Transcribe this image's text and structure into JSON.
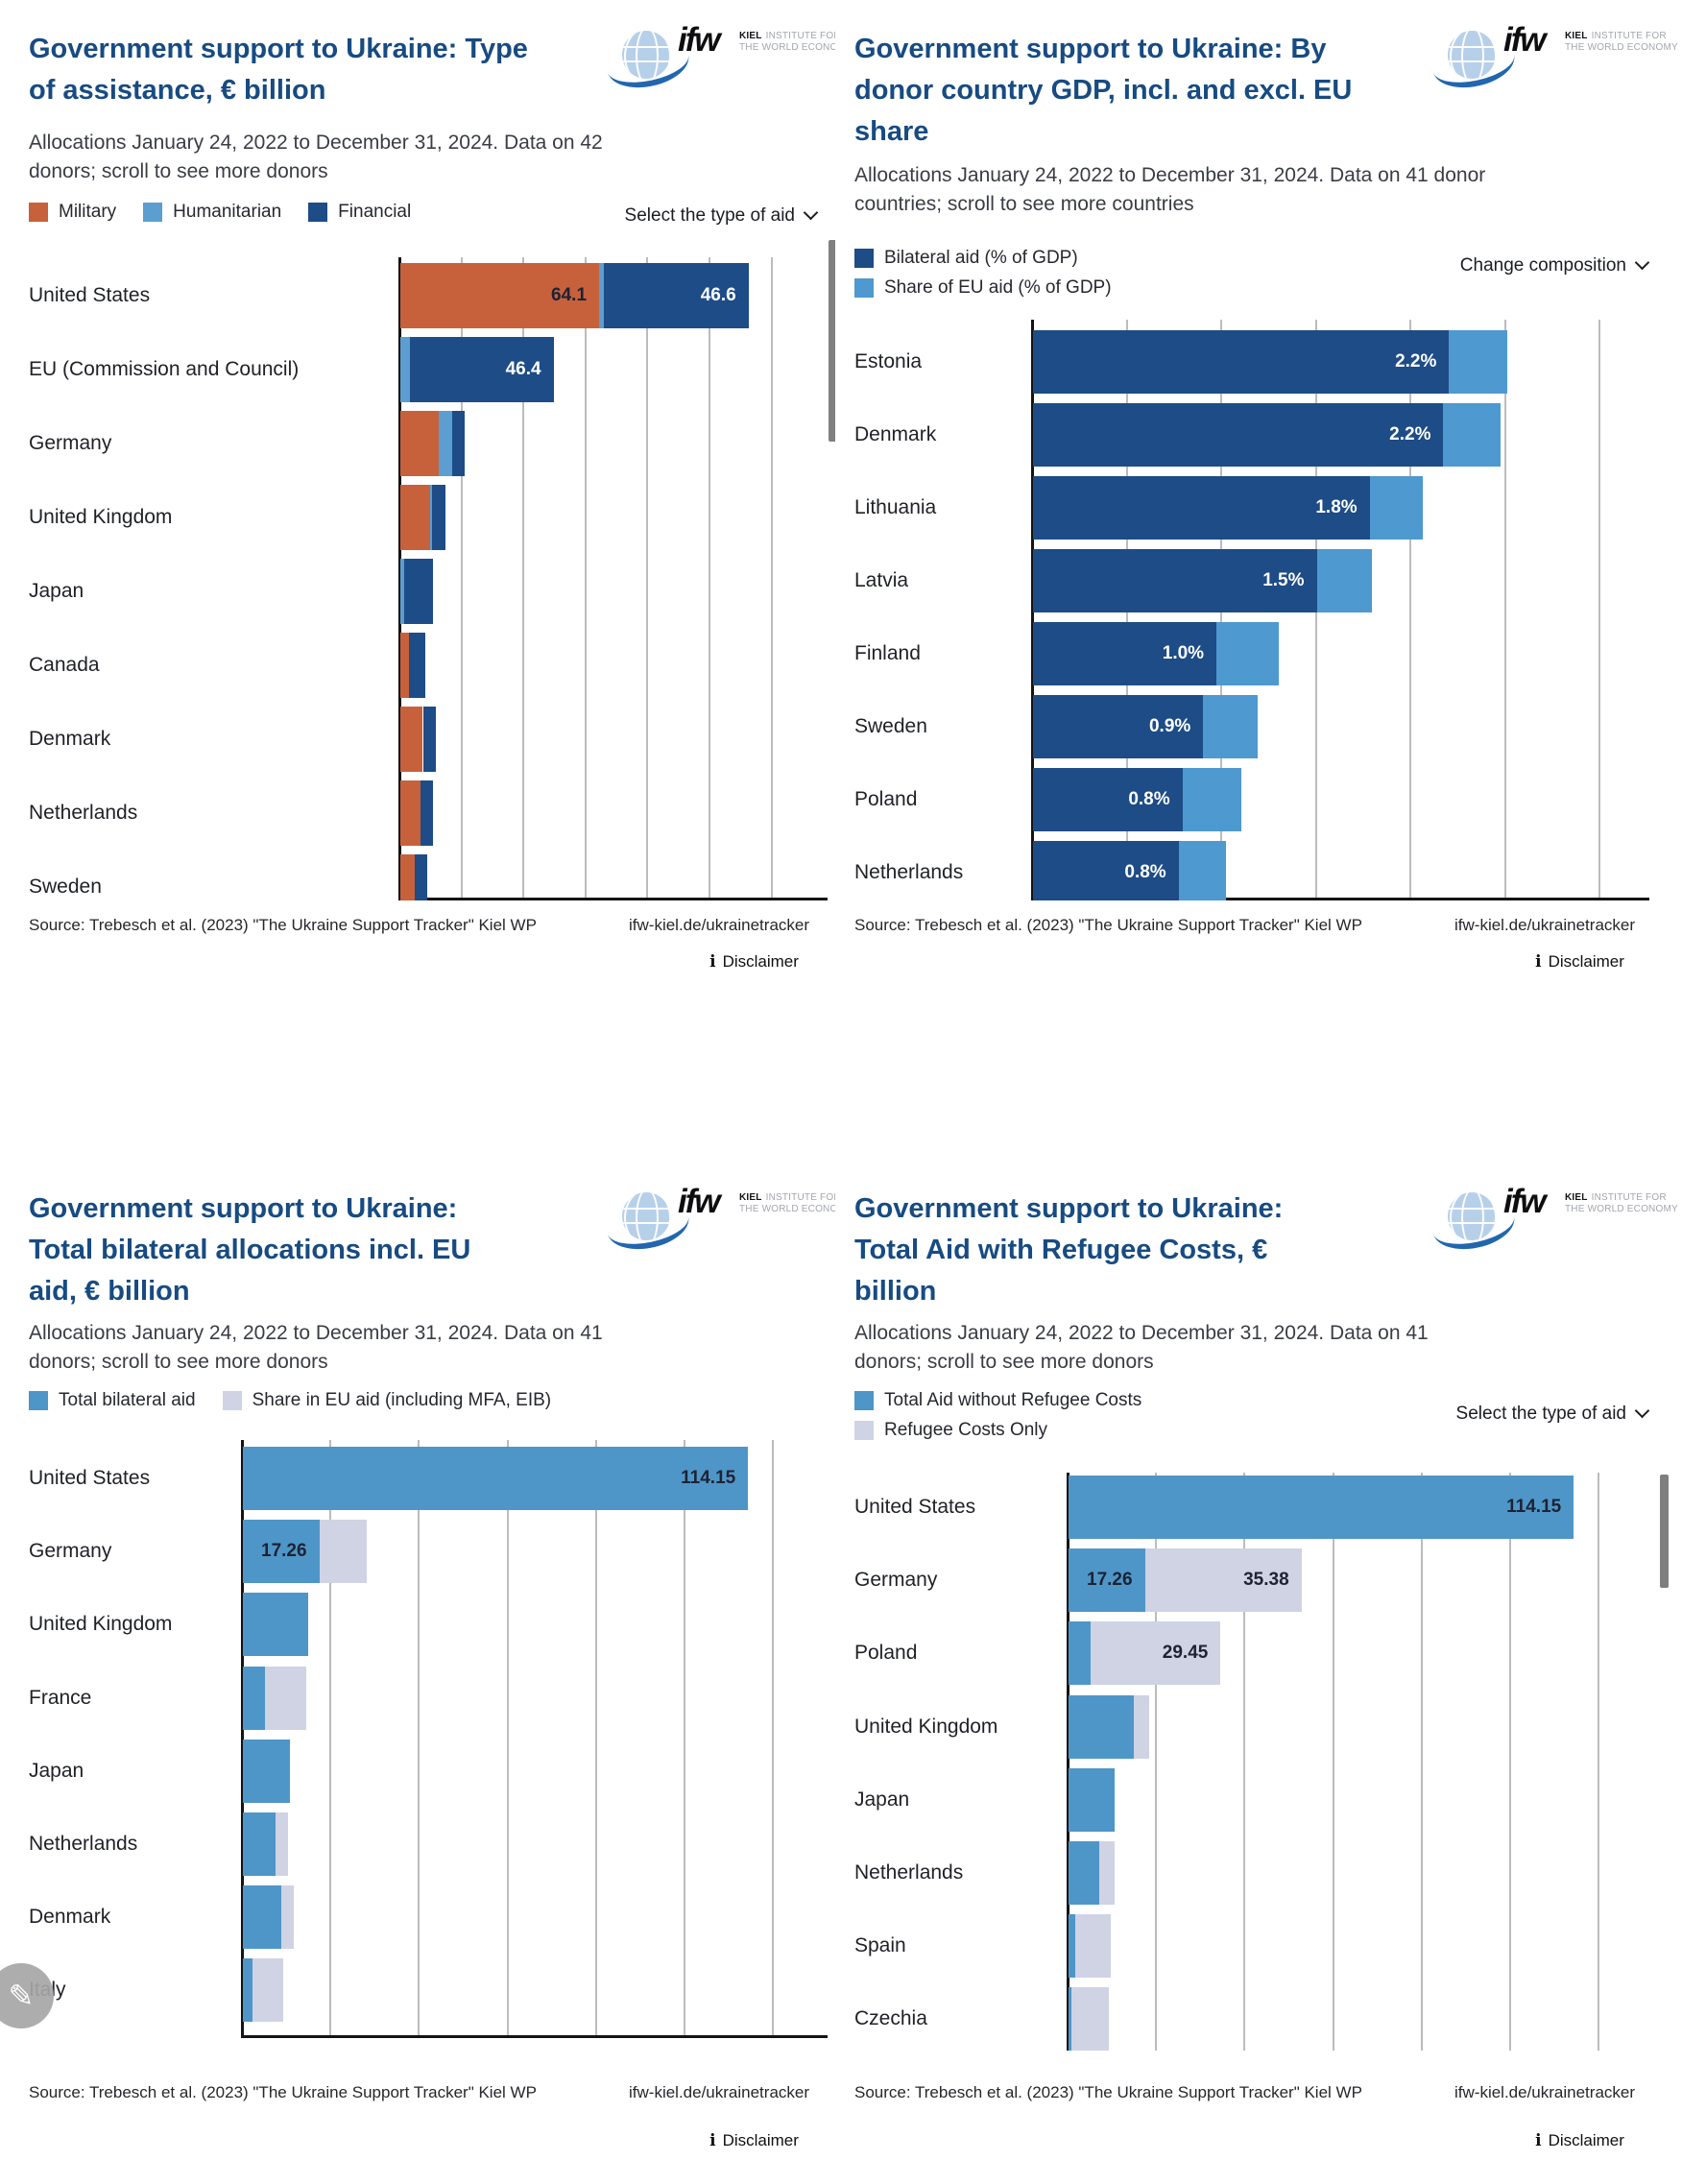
{
  "logo": {
    "abbr": "ifw",
    "kiel": "KIEL",
    "line1_rest": "INSTITUTE FOR",
    "line2": "THE WORLD ECONOMY"
  },
  "footer": {
    "source": "Source: Trebesch et al. (2023) \"The Ukraine Support Tracker\" Kiel WP",
    "url": "ifw-kiel.de/ukrainetracker",
    "disclaimer": "Disclaimer"
  },
  "chart_data": [
    {
      "type": "bar",
      "subtype": "stacked-horizontal",
      "title": "Government support to Ukraine: Type of assistance, € billion",
      "title_lines": [
        "Government support to Ukraine: Type",
        "of assistance, € billion"
      ],
      "subtitle": "Allocations January 24, 2022 to December 31, 2024. Data on 42 donors; scroll to see more donors",
      "subtitle_lines": [
        "Allocations January 24, 2022 to December 31, 2024. Data on 42",
        "donors; scroll to see more donors"
      ],
      "control": "Select the type of aid",
      "legend": [
        {
          "label": "Military",
          "color": "#C6613C"
        },
        {
          "label": "Humanitarian",
          "color": "#5B9ECF"
        },
        {
          "label": "Financial",
          "color": "#1D4C87"
        }
      ],
      "xlabel": "",
      "ylabel": "",
      "unit": "€ billion",
      "xlim": [
        0,
        140
      ],
      "grid_step": 20,
      "grid_on": true,
      "categories": [
        "United States",
        "EU (Commission and Council)",
        "Germany",
        "United Kingdom",
        "Japan",
        "Canada",
        "Denmark",
        "Netherlands",
        "Sweden"
      ],
      "series": [
        {
          "name": "Military",
          "color": "#C6613C",
          "values": [
            64.1,
            0,
            12.5,
            9.6,
            0,
            2.6,
            7.2,
            6.5,
            4.5
          ]
        },
        {
          "name": "Humanitarian",
          "color": "#5B9ECF",
          "values": [
            1.6,
            3.0,
            4.2,
            0.5,
            1.2,
            0.3,
            0.2,
            0.1,
            0.2
          ]
        },
        {
          "name": "Financial",
          "color": "#1D4C87",
          "values": [
            46.6,
            46.4,
            0.7,
            4.5,
            9.2,
            5.2,
            0.6,
            0.5,
            0.7
          ]
        }
      ],
      "value_labels": [
        {
          "row": 0,
          "series": 0,
          "text": "64.1",
          "color": "#1E2233"
        },
        {
          "row": 0,
          "series": 2,
          "text": "46.6",
          "color": "#FFFFFF"
        },
        {
          "row": 1,
          "series": 2,
          "text": "46.4",
          "color": "#FFFFFF"
        }
      ]
    },
    {
      "type": "bar",
      "subtype": "stacked-horizontal",
      "title": "Government support to Ukraine: By donor country GDP, incl. and excl. EU share",
      "title_lines": [
        "Government support to Ukraine: By",
        "donor country GDP, incl. and excl. EU",
        "share"
      ],
      "subtitle": "Allocations January 24, 2022 to December 31, 2024. Data on 41 donor countries; scroll to see more countries",
      "subtitle_lines": [
        "Allocations January 24, 2022 to December 31, 2024. Data on 41 donor",
        "countries; scroll to see more countries"
      ],
      "control": "Change composition",
      "legend": [
        {
          "label": "Bilateral aid (% of GDP)",
          "color": "#1D4C87"
        },
        {
          "label": "Share of EU aid (% of GDP)",
          "color": "#4E99CF"
        }
      ],
      "xlabel": "",
      "ylabel": "",
      "unit": "% of GDP",
      "xlim": [
        0,
        3.2
      ],
      "grid_step": 0.5,
      "grid_on": true,
      "categories": [
        "Estonia",
        "Denmark",
        "Lithuania",
        "Latvia",
        "Finland",
        "Sweden",
        "Poland",
        "Netherlands"
      ],
      "series": [
        {
          "name": "Bilateral aid",
          "color": "#1D4C87",
          "values": [
            2.2,
            2.17,
            1.78,
            1.5,
            0.97,
            0.9,
            0.79,
            0.77
          ]
        },
        {
          "name": "Share of EU aid",
          "color": "#4E99CF",
          "values": [
            0.31,
            0.3,
            0.28,
            0.29,
            0.33,
            0.29,
            0.31,
            0.25
          ]
        }
      ],
      "value_labels": [
        {
          "row": 0,
          "series": 0,
          "text": "2.2%",
          "color": "#FFFFFF"
        },
        {
          "row": 1,
          "series": 0,
          "text": "2.2%",
          "color": "#FFFFFF"
        },
        {
          "row": 2,
          "series": 0,
          "text": "1.8%",
          "color": "#FFFFFF"
        },
        {
          "row": 3,
          "series": 0,
          "text": "1.5%",
          "color": "#FFFFFF"
        },
        {
          "row": 4,
          "series": 0,
          "text": "1.0%",
          "color": "#FFFFFF"
        },
        {
          "row": 5,
          "series": 0,
          "text": "0.9%",
          "color": "#FFFFFF"
        },
        {
          "row": 6,
          "series": 0,
          "text": "0.8%",
          "color": "#FFFFFF"
        },
        {
          "row": 7,
          "series": 0,
          "text": "0.8%",
          "color": "#FFFFFF"
        }
      ]
    },
    {
      "type": "bar",
      "subtype": "stacked-horizontal",
      "title": "Government support to Ukraine: Total bilateral allocations incl. EU aid, € billion",
      "title_lines": [
        "Government support to Ukraine:",
        "Total bilateral allocations incl. EU",
        "aid, € billion"
      ],
      "subtitle": "Allocations January 24, 2022 to December 31, 2024. Data on 41 donors; scroll to see more donors",
      "subtitle_lines": [
        "Allocations January 24, 2022 to December 31, 2024. Data on 41",
        "donors; scroll to see more donors"
      ],
      "control": "",
      "legend": [
        {
          "label": "Total bilateral aid",
          "color": "#4E96C8"
        },
        {
          "label": "Share in EU aid (including MFA, EIB)",
          "color": "#CFD3E4"
        }
      ],
      "xlabel": "",
      "ylabel": "",
      "unit": "€ billion",
      "xlim": [
        0,
        132
      ],
      "grid_step": 20,
      "grid_on": true,
      "categories": [
        "United States",
        "Germany",
        "United Kingdom",
        "France",
        "Japan",
        "Netherlands",
        "Denmark",
        "Italy"
      ],
      "series": [
        {
          "name": "Total bilateral aid",
          "color": "#4E96C8",
          "values": [
            114.15,
            17.26,
            14.8,
            5.0,
            10.6,
            7.4,
            8.7,
            2.2
          ]
        },
        {
          "name": "Share in EU aid",
          "color": "#CFD3E4",
          "values": [
            0,
            10.7,
            0,
            9.4,
            0,
            2.2,
            0.9,
            6.9
          ]
        }
      ],
      "value_labels": [
        {
          "row": 0,
          "series": 0,
          "text": "114.15",
          "color": "#1E2233"
        },
        {
          "row": 1,
          "series": 0,
          "text": "17.26",
          "color": "#1E2233"
        }
      ]
    },
    {
      "type": "bar",
      "subtype": "stacked-horizontal",
      "title": "Government support to Ukraine: Total Aid with Refugee Costs, € billion",
      "title_lines": [
        "Government support to Ukraine:",
        "Total Aid with Refugee Costs, €",
        "billion"
      ],
      "subtitle": "Allocations January 24, 2022 to December 31, 2024. Data on 41 donors; scroll to see more donors",
      "subtitle_lines": [
        "Allocations January 24, 2022 to December 31, 2024. Data on 41",
        "donors; scroll to see more donors"
      ],
      "control": "Select the type of aid",
      "legend": [
        {
          "label": "Total Aid without Refugee Costs",
          "color": "#4E96C8"
        },
        {
          "label": "Refugee Costs Only",
          "color": "#CFD3E4"
        }
      ],
      "xlabel": "",
      "ylabel": "",
      "unit": "€ billion",
      "xlim": [
        0,
        132
      ],
      "grid_step": 20,
      "grid_on": true,
      "categories": [
        "United States",
        "Germany",
        "Poland",
        "United Kingdom",
        "Japan",
        "Netherlands",
        "Spain",
        "Czechia"
      ],
      "series": [
        {
          "name": "Total Aid without Refugee Costs",
          "color": "#4E96C8",
          "values": [
            114.15,
            17.26,
            4.9,
            14.8,
            10.4,
            7.0,
            1.5,
            0.7
          ]
        },
        {
          "name": "Refugee Costs Only",
          "color": "#CFD3E4",
          "values": [
            0,
            35.38,
            29.45,
            3.5,
            0,
            3.4,
            8.0,
            8.4
          ]
        }
      ],
      "value_labels": [
        {
          "row": 0,
          "series": 0,
          "text": "114.15",
          "color": "#1E2233"
        },
        {
          "row": 1,
          "series": 0,
          "text": "17.26",
          "color": "#1E2233"
        },
        {
          "row": 1,
          "series": 1,
          "text": "35.38",
          "color": "#1E2233"
        },
        {
          "row": 2,
          "series": 1,
          "text": "29.45",
          "color": "#1E2233"
        }
      ]
    }
  ]
}
